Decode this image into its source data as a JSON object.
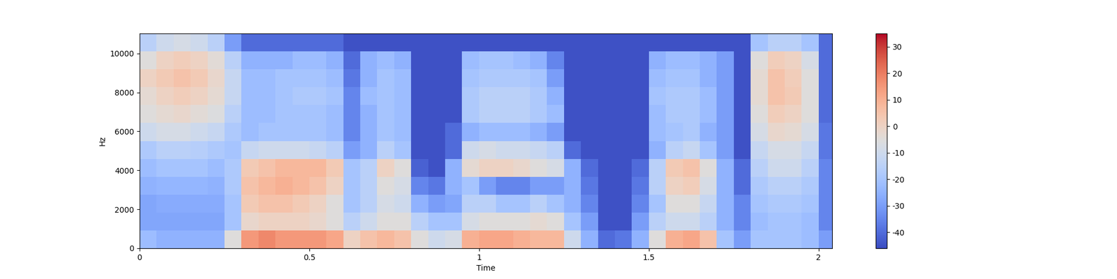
{
  "chart_data": {
    "type": "heatmap",
    "xlabel": "Time",
    "ylabel": "Hz",
    "color": "coolwarm",
    "xlim": [
      0,
      2.04
    ],
    "xticks": [
      0,
      0.5,
      1,
      1.5,
      2
    ],
    "ylim": [
      0,
      11025
    ],
    "yticks": [
      0,
      2000,
      4000,
      6000,
      8000,
      10000
    ],
    "colorbar_range": [
      -46,
      35
    ],
    "colorbar_ticks": [
      -40,
      -30,
      -20,
      -10,
      0,
      10,
      20,
      30
    ],
    "x": [
      0.025,
      0.075,
      0.125,
      0.175,
      0.225,
      0.275,
      0.325,
      0.375,
      0.425,
      0.475,
      0.525,
      0.575,
      0.625,
      0.675,
      0.725,
      0.775,
      0.825,
      0.875,
      0.925,
      0.975,
      1.025,
      1.075,
      1.125,
      1.175,
      1.225,
      1.275,
      1.325,
      1.375,
      1.425,
      1.475,
      1.525,
      1.575,
      1.625,
      1.675,
      1.725,
      1.775,
      1.825,
      1.875,
      1.925,
      1.975,
      2.025
    ],
    "y": [
      459,
      1378,
      2297,
      3216,
      4134,
      5053,
      5972,
      6891,
      7809,
      8728,
      9647,
      10566
    ],
    "values": [
      [
        -22,
        -28,
        -28,
        -25,
        -22,
        -18,
        -10,
        -5,
        -3,
        0,
        -5,
        -15
      ],
      [
        -25,
        -28,
        -27,
        -24,
        -20,
        -15,
        -8,
        -3,
        0,
        3,
        0,
        -10
      ],
      [
        -25,
        -28,
        -27,
        -24,
        -20,
        -15,
        -8,
        -2,
        2,
        5,
        2,
        -8
      ],
      [
        -25,
        -28,
        -27,
        -24,
        -20,
        -16,
        -10,
        -4,
        0,
        3,
        0,
        -10
      ],
      [
        -25,
        -28,
        -27,
        -25,
        -22,
        -18,
        -12,
        -6,
        -3,
        -2,
        -4,
        -15
      ],
      [
        -5,
        -20,
        -20,
        -18,
        -18,
        -20,
        -18,
        -15,
        -12,
        -12,
        -15,
        -30
      ],
      [
        15,
        -2,
        3,
        5,
        3,
        -12,
        -22,
        -22,
        -22,
        -22,
        -25,
        -40
      ],
      [
        18,
        0,
        5,
        8,
        5,
        -10,
        -20,
        -22,
        -22,
        -22,
        -25,
        -40
      ],
      [
        15,
        0,
        5,
        10,
        8,
        -10,
        -20,
        -20,
        -20,
        -20,
        -25,
        -40
      ],
      [
        15,
        0,
        3,
        8,
        8,
        -10,
        -20,
        -20,
        -18,
        -20,
        -22,
        -40
      ],
      [
        15,
        -2,
        0,
        5,
        8,
        -12,
        -20,
        -20,
        -18,
        -20,
        -22,
        -40
      ],
      [
        12,
        -5,
        -5,
        0,
        3,
        -15,
        -22,
        -22,
        -20,
        -22,
        -25,
        -40
      ],
      [
        0,
        -15,
        -20,
        -20,
        -20,
        -30,
        -35,
        -35,
        -35,
        -38,
        -40,
        -45
      ],
      [
        5,
        -10,
        -15,
        -15,
        -15,
        -25,
        -25,
        -25,
        -22,
        -25,
        -25,
        -45
      ],
      [
        8,
        -5,
        -8,
        -5,
        0,
        -15,
        -20,
        -20,
        -20,
        -20,
        -22,
        -45
      ],
      [
        5,
        -5,
        -10,
        -8,
        -5,
        -20,
        -22,
        -22,
        -22,
        -22,
        -25,
        -45
      ],
      [
        -5,
        -15,
        -25,
        -35,
        -42,
        -45,
        -45,
        -45,
        -45,
        -45,
        -45,
        -45
      ],
      [
        -10,
        -20,
        -30,
        -38,
        -45,
        -45,
        -45,
        -45,
        -45,
        -45,
        -45,
        -45
      ],
      [
        -8,
        -20,
        -28,
        -25,
        -25,
        -40,
        -40,
        -45,
        -45,
        -45,
        -45,
        -45
      ],
      [
        10,
        -8,
        -15,
        -20,
        -3,
        -10,
        -25,
        -18,
        -18,
        -20,
        -22,
        -45
      ],
      [
        12,
        -5,
        -15,
        -30,
        0,
        -8,
        -22,
        -15,
        -15,
        -18,
        -20,
        -45
      ],
      [
        12,
        -5,
        -20,
        -35,
        0,
        -10,
        -22,
        -15,
        -15,
        -18,
        -20,
        -45
      ],
      [
        10,
        -5,
        -20,
        -35,
        -2,
        -10,
        -22,
        -15,
        -15,
        -18,
        -22,
        -45
      ],
      [
        8,
        -3,
        -15,
        -30,
        -5,
        -12,
        -25,
        -18,
        -18,
        -20,
        -25,
        -45
      ],
      [
        8,
        -5,
        -20,
        -30,
        -8,
        -15,
        -30,
        -22,
        -25,
        -30,
        -35,
        -45
      ],
      [
        -10,
        -20,
        -25,
        -25,
        -25,
        -40,
        -45,
        -45,
        -45,
        -45,
        -45,
        -45
      ],
      [
        -25,
        -30,
        -35,
        -38,
        -40,
        -45,
        -45,
        -45,
        -45,
        -45,
        -45,
        -45
      ],
      [
        -40,
        -45,
        -45,
        -45,
        -45,
        -45,
        -45,
        -45,
        -45,
        -45,
        -45,
        -45
      ],
      [
        -38,
        -45,
        -45,
        -45,
        -45,
        -45,
        -45,
        -45,
        -45,
        -45,
        -45,
        -45
      ],
      [
        -25,
        -30,
        -35,
        -38,
        -40,
        -45,
        -45,
        -45,
        -45,
        -45,
        -45,
        -45
      ],
      [
        -5,
        -15,
        -20,
        -15,
        -15,
        -25,
        -22,
        -22,
        -20,
        -22,
        -25,
        -45
      ],
      [
        10,
        -10,
        -5,
        0,
        3,
        -15,
        -20,
        -18,
        -18,
        -20,
        -22,
        -45
      ],
      [
        12,
        -10,
        -5,
        2,
        5,
        -12,
        -18,
        -18,
        -18,
        -20,
        -22,
        -45
      ],
      [
        5,
        -15,
        -12,
        -8,
        -5,
        -20,
        -25,
        -22,
        -22,
        -25,
        -25,
        -45
      ],
      [
        -20,
        -25,
        -25,
        -25,
        -25,
        -30,
        -30,
        -30,
        -30,
        -30,
        -30,
        -45
      ],
      [
        -30,
        -35,
        -35,
        -40,
        -40,
        -45,
        -45,
        -45,
        -45,
        -45,
        -45,
        -45
      ],
      [
        -20,
        -22,
        -20,
        -18,
        -15,
        -12,
        -8,
        -5,
        -3,
        -3,
        -5,
        -20
      ],
      [
        -20,
        -20,
        -18,
        -15,
        -10,
        -8,
        -2,
        2,
        5,
        5,
        2,
        -15
      ],
      [
        -20,
        -20,
        -18,
        -15,
        -10,
        -8,
        -3,
        0,
        3,
        2,
        0,
        -15
      ],
      [
        -22,
        -22,
        -20,
        -18,
        -15,
        -12,
        -8,
        -5,
        -5,
        -5,
        -8,
        -20
      ],
      [
        -30,
        -35,
        -35,
        -35,
        -35,
        -38,
        -38,
        -40,
        -40,
        -40,
        -40,
        -40
      ]
    ]
  }
}
